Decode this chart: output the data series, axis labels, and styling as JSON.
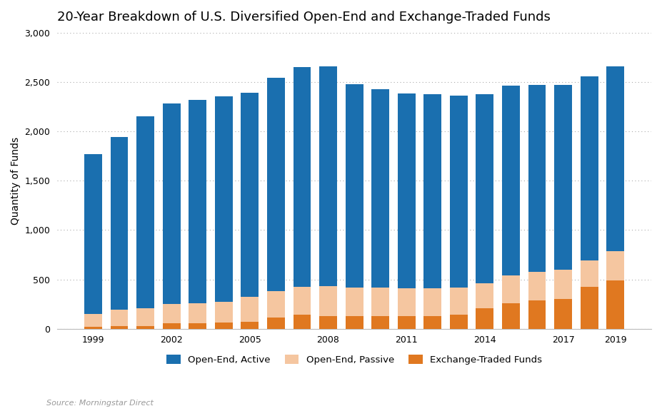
{
  "title": "20-Year Breakdown of U.S. Diversified Open-End and Exchange-Traded Funds",
  "ylabel": "Quantity of Funds",
  "source": "Source: Morningstar Direct",
  "years": [
    1999,
    2000,
    2001,
    2002,
    2003,
    2004,
    2005,
    2006,
    2007,
    2008,
    2009,
    2010,
    2011,
    2012,
    2013,
    2014,
    2015,
    2016,
    2017,
    2018,
    2019
  ],
  "active": [
    1620,
    1750,
    1950,
    2035,
    2065,
    2080,
    2070,
    2160,
    2225,
    2230,
    2060,
    2010,
    1975,
    1965,
    1950,
    1915,
    1920,
    1895,
    1870,
    1870,
    1870
  ],
  "passive": [
    130,
    165,
    175,
    195,
    200,
    215,
    250,
    265,
    285,
    305,
    295,
    290,
    280,
    280,
    275,
    255,
    285,
    285,
    295,
    265,
    295
  ],
  "etf": [
    20,
    30,
    30,
    55,
    55,
    60,
    70,
    115,
    140,
    125,
    125,
    130,
    130,
    130,
    140,
    205,
    255,
    290,
    305,
    425,
    490
  ],
  "colors": {
    "active": "#1a6faf",
    "passive": "#f5c6a0",
    "etf": "#e07820"
  },
  "ylim": [
    0,
    3000
  ],
  "yticks": [
    0,
    500,
    1000,
    1500,
    2000,
    2500,
    3000
  ],
  "legend_labels": [
    "Open-End, Active",
    "Open-End, Passive",
    "Exchange-Traded Funds"
  ],
  "title_fontsize": 13,
  "background_color": "#ffffff"
}
